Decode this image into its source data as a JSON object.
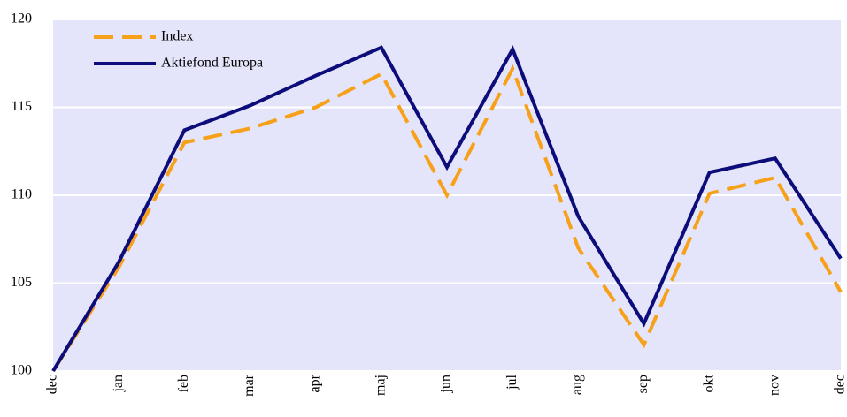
{
  "chart_data": {
    "type": "line",
    "categories": [
      "dec",
      "jan",
      "feb",
      "mar",
      "apr",
      "maj",
      "jun",
      "jul",
      "aug",
      "sep",
      "okt",
      "nov",
      "dec"
    ],
    "series": [
      {
        "name": "Index",
        "color": "#f7a11a",
        "dash": true,
        "values": [
          100,
          105.9,
          113.0,
          113.8,
          115.0,
          116.9,
          110.0,
          117.2,
          107.0,
          101.5,
          110.1,
          111.0,
          104.5
        ]
      },
      {
        "name": "Aktiefond Europa",
        "color": "#0c0c7a",
        "dash": false,
        "values": [
          100,
          106.2,
          113.7,
          115.1,
          116.8,
          118.4,
          111.6,
          118.3,
          108.8,
          102.7,
          111.3,
          112.1,
          106.4
        ]
      }
    ],
    "ylim": [
      100,
      120
    ],
    "yticks": [
      100,
      105,
      110,
      115,
      120
    ],
    "grid": true,
    "legend": "top-left"
  }
}
